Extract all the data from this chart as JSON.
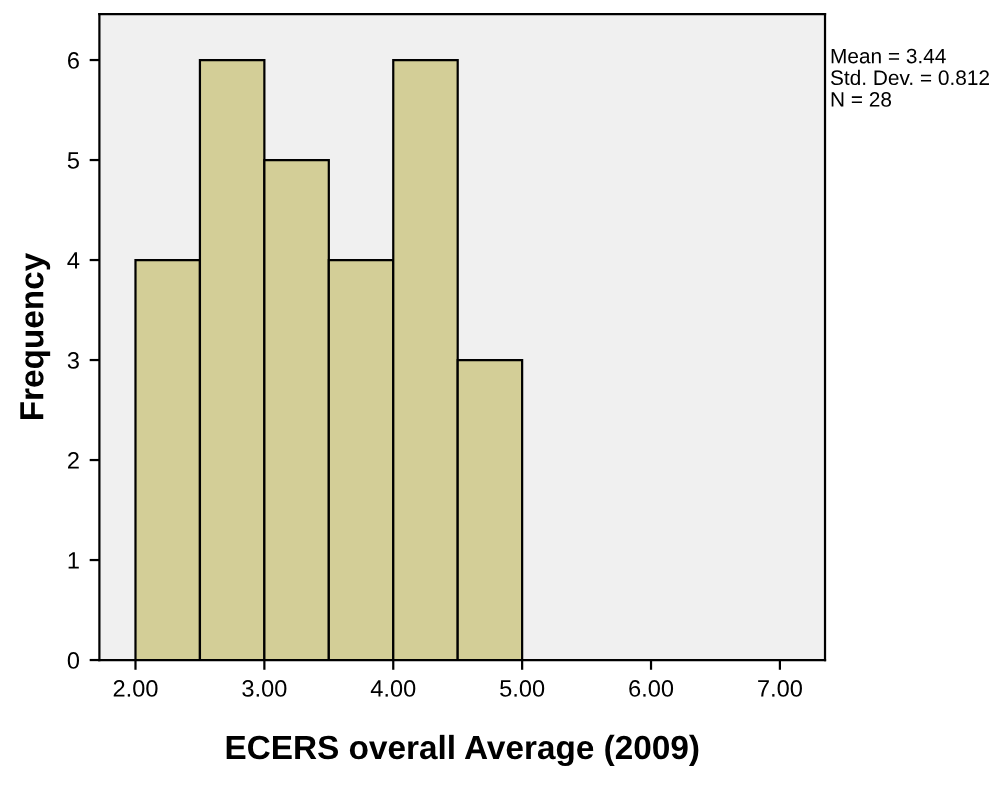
{
  "chart_data": {
    "type": "histogram",
    "xlabel": "ECERS overall Average (2009)",
    "ylabel": "Frequency",
    "bins": [
      2.0,
      2.5,
      3.0,
      3.5,
      4.0,
      4.5,
      5.0
    ],
    "values": [
      4,
      6,
      5,
      4,
      6,
      3
    ],
    "color": "#d3ce97",
    "xlim": [
      1.72,
      7.35
    ],
    "ylim": [
      0,
      6.46
    ],
    "xticks": [
      {
        "value": 2,
        "label": "2.00"
      },
      {
        "value": 3,
        "label": "3.00"
      },
      {
        "value": 4,
        "label": "4.00"
      },
      {
        "value": 5,
        "label": "5.00"
      },
      {
        "value": 6,
        "label": "6.00"
      },
      {
        "value": 7,
        "label": "7.00"
      }
    ],
    "yticks": [
      0,
      1,
      2,
      3,
      4,
      5,
      6
    ],
    "grid": false,
    "annotations": [
      "Mean = 3.44",
      "Std. Dev. = 0.812",
      "N = 28"
    ]
  }
}
